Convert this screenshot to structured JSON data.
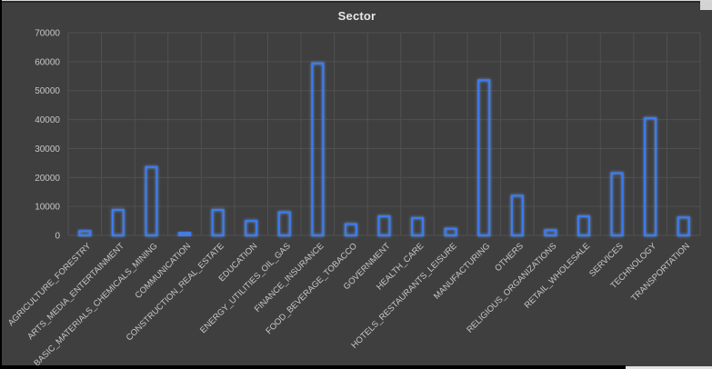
{
  "chart_data": {
    "type": "bar",
    "title": "Sector",
    "categories": [
      "AGRICULTURE_FORESTRY",
      "ARTS_MEDIA_ENTERTAINMENT",
      "BASIC_MATERIALS_CHEMICALS_MINING",
      "COMMUNICATION",
      "CONSTRUCTION_REAL_ESTATE",
      "EDUCATION",
      "ENERGY_UTILITIES_OIL_GAS",
      "FINANCE_INSURANCE",
      "FOOD_BEVERAGE_TOBACCO",
      "GOVERNMENT",
      "HEALTH_CARE",
      "HOTELS_RESTAURANTS_LEISURE",
      "MANUFACTURING",
      "OTHERS",
      "RELIGIOUS_ORGANIZATIONS",
      "RETAIL_WHOLESALE",
      "SERVICES",
      "TECHNOLOGY",
      "TRANSPORTATION"
    ],
    "values": [
      1500,
      8800,
      23600,
      900,
      8800,
      5000,
      8000,
      59400,
      3900,
      6600,
      6000,
      2300,
      53600,
      13700,
      1800,
      6600,
      21500,
      40500,
      6200
    ],
    "xlabel": "",
    "ylabel": "",
    "ylim": [
      0,
      70000
    ],
    "y_tick_labels": [
      "0",
      "10000",
      "20000",
      "30000",
      "40000",
      "50000",
      "60000",
      "70000"
    ],
    "grid": "on",
    "legend_position": "none",
    "colors": {
      "background": "#3f3f3f",
      "gridline": "#515151",
      "bar_stroke": "#3b7cf5",
      "bar_glow": "#6ea8ff",
      "tick_label": "#c6c6c6",
      "title": "#e8e8e8"
    }
  }
}
